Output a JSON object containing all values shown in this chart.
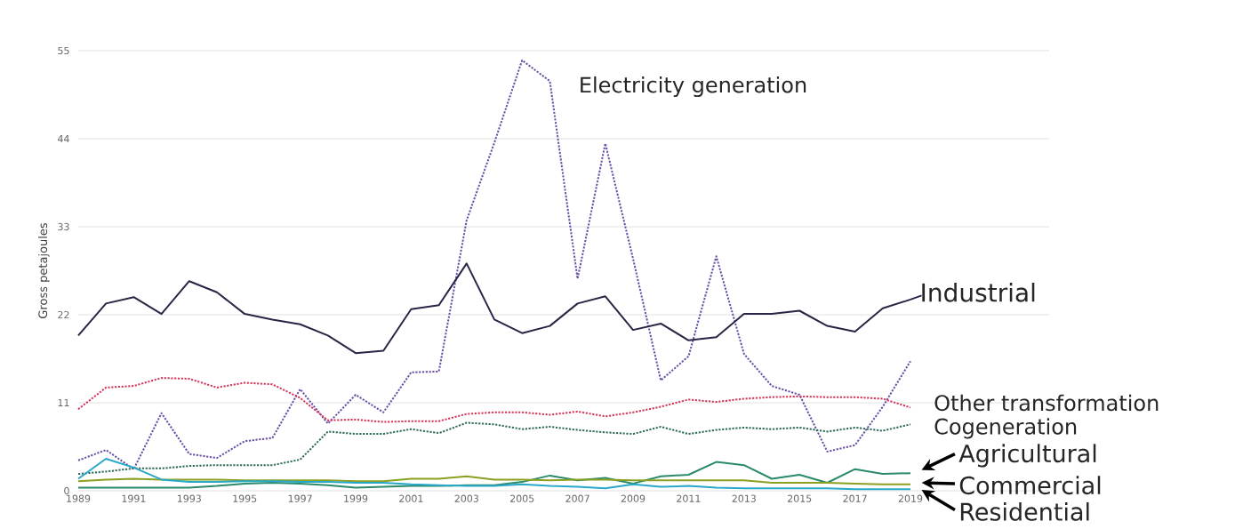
{
  "chart_data": {
    "type": "line",
    "ylabel": "Gross petajoules",
    "x": [
      1989,
      1990,
      1991,
      1992,
      1993,
      1994,
      1995,
      1996,
      1997,
      1998,
      1999,
      2000,
      2001,
      2002,
      2003,
      2004,
      2005,
      2006,
      2007,
      2008,
      2009,
      2010,
      2011,
      2012,
      2013,
      2014,
      2015,
      2016,
      2017,
      2018,
      2019
    ],
    "xlim": [
      1989,
      2024
    ],
    "xticks": [
      1989,
      1991,
      1993,
      1995,
      1997,
      1999,
      2001,
      2003,
      2005,
      2007,
      2009,
      2011,
      2013,
      2015,
      2017,
      2019
    ],
    "ylim": [
      0,
      55
    ],
    "yticks": [
      0,
      11,
      22,
      33,
      44,
      55
    ],
    "grid": "y",
    "legend": "right",
    "marker": "none",
    "series": [
      {
        "name": "Electricity generation",
        "color": "#6a4fa8",
        "line_style": "dotted",
        "values": [
          3.8,
          5.1,
          2.7,
          9.7,
          4.6,
          4.1,
          6.2,
          6.6,
          12.7,
          8.4,
          12.0,
          9.8,
          14.8,
          14.9,
          33.8,
          43.5,
          53.8,
          51.2,
          26.5,
          43.4,
          29,
          13.8,
          16.8,
          29.3,
          17.1,
          13.1,
          12.0,
          4.9,
          5.7,
          10.5,
          16.2
        ]
      },
      {
        "name": "Industrial",
        "color": "#2a2545",
        "line_style": "solid",
        "values": [
          19.4,
          23.4,
          24.2,
          22.1,
          26.2,
          24.8,
          22.1,
          21.4,
          20.8,
          19.4,
          17.2,
          17.5,
          22.7,
          23.2,
          28.4,
          21.4,
          19.7,
          20.6,
          23.4,
          24.3,
          20.1,
          20.9,
          18.8,
          19.2,
          22.1,
          22.1,
          22.5,
          20.6,
          19.9,
          22.8,
          23.9
        ]
      },
      {
        "name": "Other transformation",
        "color": "#d2385a",
        "line_style": "dotted",
        "values": [
          10.2,
          12.9,
          13.1,
          14.1,
          14.0,
          12.9,
          13.5,
          13.3,
          11.6,
          8.8,
          8.9,
          8.6,
          8.7,
          8.7,
          9.6,
          9.8,
          9.8,
          9.5,
          9.9,
          9.3,
          9.8,
          10.5,
          11.4,
          11.1,
          11.5,
          11.7,
          11.8,
          11.7,
          11.7,
          11.5,
          10.4
        ]
      },
      {
        "name": "Cogeneration",
        "color": "#2e6a5a",
        "line_style": "dotted",
        "values": [
          2.1,
          2.4,
          2.8,
          2.8,
          3.1,
          3.2,
          3.2,
          3.2,
          3.9,
          7.4,
          7.1,
          7.1,
          7.7,
          7.2,
          8.5,
          8.3,
          7.7,
          8.0,
          7.6,
          7.3,
          7.1,
          8.0,
          7.1,
          7.6,
          7.9,
          7.7,
          7.9,
          7.4,
          7.9,
          7.5,
          8.3
        ]
      },
      {
        "name": "Agricultural",
        "color": "#2a8a6a",
        "line_style": "solid",
        "values": [
          0.4,
          0.4,
          0.4,
          0.4,
          0.4,
          0.6,
          0.9,
          1.0,
          0.9,
          0.7,
          0.4,
          0.5,
          0.6,
          0.6,
          0.7,
          0.7,
          1.1,
          1.9,
          1.3,
          1.6,
          0.9,
          1.8,
          2.0,
          3.6,
          3.2,
          1.5,
          2.0,
          1.0,
          2.7,
          2.1,
          2.2
        ]
      },
      {
        "name": "Commercial",
        "color": "#8aa020",
        "line_style": "solid",
        "values": [
          1.2,
          1.4,
          1.5,
          1.4,
          1.4,
          1.4,
          1.3,
          1.3,
          1.3,
          1.3,
          1.2,
          1.2,
          1.5,
          1.5,
          1.8,
          1.4,
          1.4,
          1.3,
          1.4,
          1.4,
          1.3,
          1.3,
          1.3,
          1.3,
          1.3,
          1.0,
          1.0,
          1.0,
          0.9,
          0.8,
          0.8
        ]
      },
      {
        "name": "Residential",
        "color": "#28a8c8",
        "line_style": "solid",
        "values": [
          1.5,
          4.0,
          2.9,
          1.4,
          1.1,
          1.1,
          1.2,
          1.2,
          1.1,
          1.1,
          1.0,
          1.0,
          0.8,
          0.7,
          0.6,
          0.6,
          0.8,
          0.6,
          0.5,
          0.3,
          0.8,
          0.5,
          0.6,
          0.4,
          0.3,
          0.3,
          0.3,
          0.3,
          0.2,
          0.2,
          0.2
        ]
      }
    ]
  }
}
